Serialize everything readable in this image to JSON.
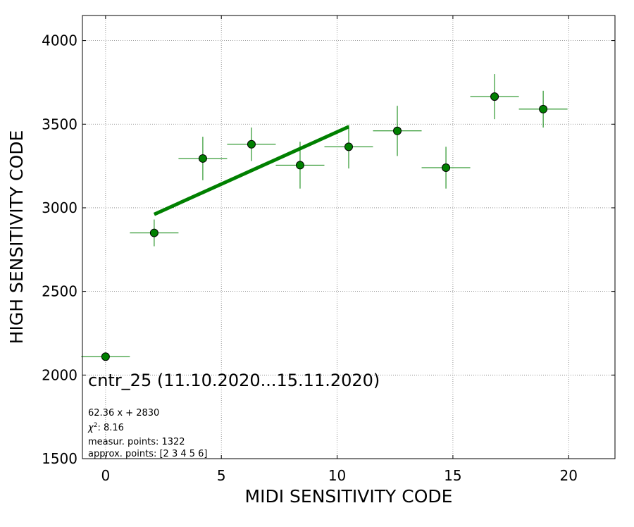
{
  "chart_data": {
    "type": "scatter",
    "title": "cntr_25 (11.10.2020...15.11.2020)",
    "xlabel": "MIDI SENSITIVITY CODE",
    "ylabel": "HIGH SENSITIVITY CODE",
    "xlim": [
      -1,
      22
    ],
    "ylim": [
      1500,
      4150
    ],
    "xticks": [
      0,
      5,
      10,
      15,
      20
    ],
    "yticks": [
      1500,
      2000,
      2500,
      3000,
      3500,
      4000
    ],
    "grid": true,
    "points": [
      {
        "x": 0.0,
        "y": 2110,
        "xerr": 1.05,
        "yerr": 0
      },
      {
        "x": 2.1,
        "y": 2850,
        "xerr": 1.05,
        "yerr": 80
      },
      {
        "x": 4.2,
        "y": 3295,
        "xerr": 1.05,
        "yerr": 130
      },
      {
        "x": 6.3,
        "y": 3380,
        "xerr": 1.05,
        "yerr": 100
      },
      {
        "x": 8.4,
        "y": 3255,
        "xerr": 1.05,
        "yerr": 140
      },
      {
        "x": 10.5,
        "y": 3365,
        "xerr": 1.05,
        "yerr": 130
      },
      {
        "x": 12.6,
        "y": 3460,
        "xerr": 1.05,
        "yerr": 150
      },
      {
        "x": 14.7,
        "y": 3240,
        "xerr": 1.05,
        "yerr": 125
      },
      {
        "x": 16.8,
        "y": 3665,
        "xerr": 1.05,
        "yerr": 135
      },
      {
        "x": 18.9,
        "y": 3590,
        "xerr": 1.05,
        "yerr": 110
      }
    ],
    "fit": {
      "slope": 62.36,
      "intercept": 2830,
      "x_range": [
        2.1,
        10.5
      ]
    },
    "annotations": {
      "equation": "62.36 x + 2830",
      "chi2_label": "χ",
      "chi2_sup": "2",
      "chi2_value": ": 8.16",
      "measur_points": "measur. points: 1322",
      "approx_points": "approx. points: [2 3 4 5 6]"
    },
    "colors": {
      "marker": "#008000",
      "marker_edge": "#000000",
      "errorbar": "#008000",
      "fit_line": "#008000",
      "grid": "#808080"
    }
  }
}
